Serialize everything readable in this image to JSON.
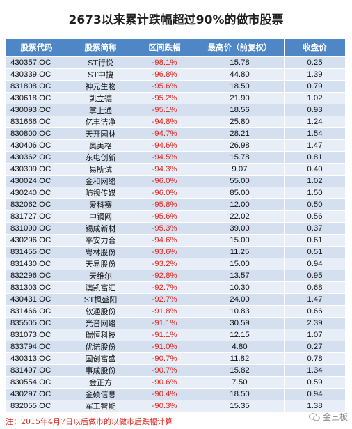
{
  "title": "2673以来累计跌幅超过90%的做市股票",
  "headers": [
    "股票代码",
    "股票简称",
    "区间跌幅",
    "最高价（前复权）",
    "收盘价"
  ],
  "rows": [
    {
      "code": "430357.OC",
      "name": "ST行悦",
      "drop": "-98.1%",
      "high": "15.78",
      "close": "0.25"
    },
    {
      "code": "430339.OC",
      "name": "ST中搜",
      "drop": "-96.8%",
      "high": "44.80",
      "close": "1.39"
    },
    {
      "code": "831808.OC",
      "name": "神元生物",
      "drop": "-95.6%",
      "high": "18.50",
      "close": "0.79"
    },
    {
      "code": "430618.OC",
      "name": "凯立德",
      "drop": "-95.2%",
      "high": "21.90",
      "close": "1.02"
    },
    {
      "code": "430093.OC",
      "name": "掌上通",
      "drop": "-95.1%",
      "high": "18.56",
      "close": "0.93"
    },
    {
      "code": "831666.OC",
      "name": "亿丰洁净",
      "drop": "-94.8%",
      "high": "25.80",
      "close": "1.24"
    },
    {
      "code": "830800.OC",
      "name": "天开园林",
      "drop": "-94.7%",
      "high": "28.21",
      "close": "1.54"
    },
    {
      "code": "430406.OC",
      "name": "奥美格",
      "drop": "-94.6%",
      "high": "26.98",
      "close": "1.47"
    },
    {
      "code": "430362.OC",
      "name": "东电创新",
      "drop": "-94.5%",
      "high": "15.78",
      "close": "0.81"
    },
    {
      "code": "430309.OC",
      "name": "易所试",
      "drop": "-94.3%",
      "high": "9.07",
      "close": "0.40"
    },
    {
      "code": "430024.OC",
      "name": "金和网络",
      "drop": "-96.0%",
      "high": "55.00",
      "close": "1.02"
    },
    {
      "code": "430240.OC",
      "name": "随视传媒",
      "drop": "-96.0%",
      "high": "85.00",
      "close": "1.50"
    },
    {
      "code": "832062.OC",
      "name": "爱科赛",
      "drop": "-95.8%",
      "high": "12.00",
      "close": "0.50"
    },
    {
      "code": "831727.OC",
      "name": "中钢网",
      "drop": "-95.6%",
      "high": "22.02",
      "close": "0.56"
    },
    {
      "code": "831090.OC",
      "name": "锡成新材",
      "drop": "-95.3%",
      "high": "39.00",
      "close": "0.37"
    },
    {
      "code": "430296.OC",
      "name": "平安力合",
      "drop": "-94.6%",
      "high": "15.00",
      "close": "0.61"
    },
    {
      "code": "831455.OC",
      "name": "粤林股份",
      "drop": "-93.6%",
      "high": "11.25",
      "close": "0.51"
    },
    {
      "code": "831430.OC",
      "name": "天易股份",
      "drop": "-93.2%",
      "high": "15.00",
      "close": "0.94"
    },
    {
      "code": "832296.OC",
      "name": "天维尔",
      "drop": "-92.8%",
      "high": "13.57",
      "close": "0.95"
    },
    {
      "code": "831303.OC",
      "name": "澳凯富汇",
      "drop": "-92.7%",
      "high": "10.30",
      "close": "0.68"
    },
    {
      "code": "430431.OC",
      "name": "ST枫盛阳",
      "drop": "-92.7%",
      "high": "24.00",
      "close": "1.47"
    },
    {
      "code": "831466.OC",
      "name": "软通股份",
      "drop": "-91.8%",
      "high": "10.83",
      "close": "0.66"
    },
    {
      "code": "835505.OC",
      "name": "光音网络",
      "drop": "-91.1%",
      "high": "30.59",
      "close": "2.39"
    },
    {
      "code": "831073.OC",
      "name": "瑞恒科技",
      "drop": "-91.1%",
      "high": "12.15",
      "close": "1.07"
    },
    {
      "code": "833794.OC",
      "name": "优诺股份",
      "drop": "-91.0%",
      "high": "4.80",
      "close": "0.27"
    },
    {
      "code": "430313.OC",
      "name": "国创富盛",
      "drop": "-90.7%",
      "high": "11.82",
      "close": "0.78"
    },
    {
      "code": "831497.OC",
      "name": "事成股份",
      "drop": "-90.7%",
      "high": "15.82",
      "close": "1.34"
    },
    {
      "code": "830554.OC",
      "name": "金正方",
      "drop": "-90.6%",
      "high": "7.50",
      "close": "0.59"
    },
    {
      "code": "430297.OC",
      "name": "金硕信息",
      "drop": "-90.4%",
      "high": "18.50",
      "close": "0.94"
    },
    {
      "code": "832055.OC",
      "name": "军工智能",
      "drop": "-90.3%",
      "high": "15.35",
      "close": "1.38"
    }
  ],
  "note": "注：2015年4月7日以后做市的以做市后跌幅计算",
  "watermark": "金三板",
  "colors": {
    "header_bg": "#4e86c6",
    "row_odd": "#d4e0f0",
    "row_even": "#e8eef7",
    "drop_text": "#e3271e",
    "note_text": "#d9261c"
  }
}
